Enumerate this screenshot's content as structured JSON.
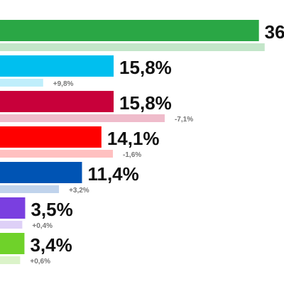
{
  "chart_data": {
    "type": "bar",
    "orientation": "horizontal",
    "title": "",
    "xlabel": "",
    "ylabel": "",
    "values": [
      36.0,
      15.8,
      15.8,
      14.1,
      11.4,
      3.5,
      3.4
    ],
    "value_labels": [
      "36",
      "15,8%",
      "15,8%",
      "14,1%",
      "11,4%",
      "3,5%",
      "3,4%"
    ],
    "previous_values": [
      36.8,
      6.0,
      22.9,
      15.7,
      8.2,
      3.1,
      2.8
    ],
    "change_labels": [
      "",
      "+9,8%",
      "-7,1%",
      "-1,6%",
      "+3,2%",
      "+0,4%",
      "+0,6%"
    ],
    "colors": [
      "#2aa745",
      "#00bfef",
      "#c8003a",
      "#ff0000",
      "#0054b4",
      "#7a3fe0",
      "#6fd22a"
    ],
    "previous_colors": [
      "#c3e6c9",
      "#bfeefb",
      "#efbccb",
      "#ffc0c0",
      "#c0d3ec",
      "#ded0f7",
      "#dbf3c9"
    ],
    "xlim": [
      0,
      36.8
    ],
    "grid": false,
    "legend": "none"
  }
}
